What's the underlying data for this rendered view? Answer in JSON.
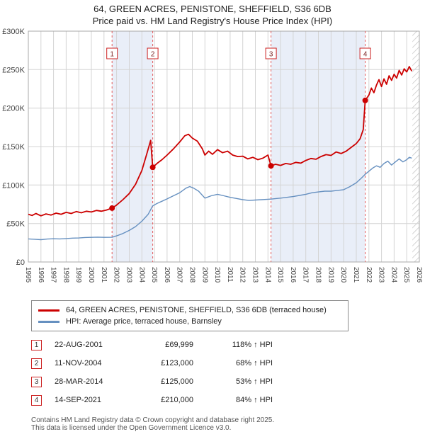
{
  "title": "64, GREEN ACRES, PENISTONE, SHEFFIELD, S36 6DB",
  "subtitle": "Price paid vs. HM Land Registry's House Price Index (HPI)",
  "chart_data": {
    "type": "line",
    "xlabel": "",
    "ylabel": "",
    "xlim": [
      1995,
      2026
    ],
    "ylim": [
      0,
      300000
    ],
    "y_unit": "GBP",
    "grid": true,
    "legend_position": "bottom",
    "x_ticks": [
      1995,
      1996,
      1997,
      1998,
      1999,
      2000,
      2001,
      2002,
      2003,
      2004,
      2005,
      2006,
      2007,
      2008,
      2009,
      2010,
      2011,
      2012,
      2013,
      2014,
      2015,
      2016,
      2017,
      2018,
      2019,
      2020,
      2021,
      2022,
      2023,
      2024,
      2025,
      2026
    ],
    "y_ticks": [
      {
        "v": 0,
        "label": "£0"
      },
      {
        "v": 50000,
        "label": "£50K"
      },
      {
        "v": 100000,
        "label": "£100K"
      },
      {
        "v": 150000,
        "label": "£150K"
      },
      {
        "v": 200000,
        "label": "£200K"
      },
      {
        "v": 250000,
        "label": "£250K"
      },
      {
        "v": 300000,
        "label": "£300K"
      }
    ],
    "band_color": "#e9eef8",
    "bands": [
      [
        2001.64,
        2004.86
      ],
      [
        2014.24,
        2021.71
      ]
    ],
    "hatch_from": 2025.45,
    "sale_line_color": "#e45c5c",
    "marker_color": "#cc0000",
    "series": [
      {
        "name": "64, GREEN ACRES, PENISTONE, SHEFFIELD, S36 6DB (terraced house)",
        "color": "#cc0000",
        "points": [
          [
            1995.0,
            62000
          ],
          [
            1995.3,
            60500
          ],
          [
            1995.6,
            63000
          ],
          [
            1996.0,
            60000
          ],
          [
            1996.4,
            62500
          ],
          [
            1996.8,
            61000
          ],
          [
            1997.2,
            63500
          ],
          [
            1997.6,
            62000
          ],
          [
            1998.0,
            64500
          ],
          [
            1998.4,
            63000
          ],
          [
            1998.8,
            65500
          ],
          [
            1999.2,
            64000
          ],
          [
            1999.6,
            66000
          ],
          [
            2000.0,
            65000
          ],
          [
            2000.4,
            67000
          ],
          [
            2000.8,
            66000
          ],
          [
            2001.2,
            67500
          ],
          [
            2001.64,
            69999
          ],
          [
            2002.0,
            74000
          ],
          [
            2002.5,
            81000
          ],
          [
            2003.0,
            89000
          ],
          [
            2003.5,
            101000
          ],
          [
            2004.0,
            119000
          ],
          [
            2004.4,
            141000
          ],
          [
            2004.7,
            158000
          ],
          [
            2004.86,
            123000
          ],
          [
            2005.2,
            128000
          ],
          [
            2005.6,
            133000
          ],
          [
            2006.0,
            139000
          ],
          [
            2006.5,
            147000
          ],
          [
            2007.0,
            156000
          ],
          [
            2007.4,
            164000
          ],
          [
            2007.7,
            166000
          ],
          [
            2008.0,
            161000
          ],
          [
            2008.4,
            157000
          ],
          [
            2008.8,
            147000
          ],
          [
            2009.0,
            139000
          ],
          [
            2009.3,
            144000
          ],
          [
            2009.6,
            140000
          ],
          [
            2010.0,
            146000
          ],
          [
            2010.4,
            142000
          ],
          [
            2010.8,
            144000
          ],
          [
            2011.2,
            139000
          ],
          [
            2011.6,
            137000
          ],
          [
            2012.0,
            137500
          ],
          [
            2012.4,
            134000
          ],
          [
            2012.8,
            136000
          ],
          [
            2013.2,
            133000
          ],
          [
            2013.6,
            135000
          ],
          [
            2014.0,
            139000
          ],
          [
            2014.24,
            125000
          ],
          [
            2014.6,
            127000
          ],
          [
            2015.0,
            125500
          ],
          [
            2015.4,
            128000
          ],
          [
            2015.8,
            127000
          ],
          [
            2016.2,
            129500
          ],
          [
            2016.6,
            128500
          ],
          [
            2017.0,
            132000
          ],
          [
            2017.4,
            134500
          ],
          [
            2017.8,
            133500
          ],
          [
            2018.2,
            137000
          ],
          [
            2018.6,
            139500
          ],
          [
            2019.0,
            138500
          ],
          [
            2019.4,
            143000
          ],
          [
            2019.8,
            141000
          ],
          [
            2020.2,
            144000
          ],
          [
            2020.6,
            149000
          ],
          [
            2021.0,
            154000
          ],
          [
            2021.3,
            160000
          ],
          [
            2021.55,
            172000
          ],
          [
            2021.71,
            210000
          ],
          [
            2022.0,
            217000
          ],
          [
            2022.2,
            226000
          ],
          [
            2022.4,
            220000
          ],
          [
            2022.6,
            230000
          ],
          [
            2022.8,
            237000
          ],
          [
            2023.0,
            228000
          ],
          [
            2023.2,
            238000
          ],
          [
            2023.4,
            231000
          ],
          [
            2023.6,
            242000
          ],
          [
            2023.8,
            236000
          ],
          [
            2024.0,
            244000
          ],
          [
            2024.2,
            239000
          ],
          [
            2024.4,
            249000
          ],
          [
            2024.6,
            243000
          ],
          [
            2024.8,
            251000
          ],
          [
            2025.0,
            247000
          ],
          [
            2025.2,
            254000
          ],
          [
            2025.4,
            248000
          ]
        ]
      },
      {
        "name": "HPI: Average price, terraced house, Barnsley",
        "color": "#6690c0",
        "points": [
          [
            1995.0,
            30000
          ],
          [
            1995.5,
            29500
          ],
          [
            1996.0,
            29000
          ],
          [
            1996.5,
            29800
          ],
          [
            1997.0,
            30200
          ],
          [
            1997.5,
            30000
          ],
          [
            1998.0,
            30500
          ],
          [
            1998.5,
            31000
          ],
          [
            1999.0,
            31200
          ],
          [
            1999.5,
            31800
          ],
          [
            2000.0,
            32000
          ],
          [
            2000.5,
            32300
          ],
          [
            2001.0,
            32000
          ],
          [
            2001.64,
            32100
          ],
          [
            2002.0,
            34000
          ],
          [
            2002.5,
            37000
          ],
          [
            2003.0,
            41000
          ],
          [
            2003.5,
            46000
          ],
          [
            2004.0,
            53000
          ],
          [
            2004.5,
            62000
          ],
          [
            2004.86,
            73000
          ],
          [
            2005.2,
            76000
          ],
          [
            2005.6,
            79000
          ],
          [
            2006.0,
            82000
          ],
          [
            2006.5,
            86000
          ],
          [
            2007.0,
            90000
          ],
          [
            2007.5,
            96000
          ],
          [
            2007.8,
            98000
          ],
          [
            2008.1,
            96000
          ],
          [
            2008.5,
            92000
          ],
          [
            2009.0,
            83000
          ],
          [
            2009.5,
            86000
          ],
          [
            2010.0,
            88000
          ],
          [
            2010.5,
            86000
          ],
          [
            2011.0,
            84000
          ],
          [
            2011.5,
            82500
          ],
          [
            2012.0,
            81000
          ],
          [
            2012.5,
            80000
          ],
          [
            2013.0,
            80500
          ],
          [
            2013.5,
            81000
          ],
          [
            2014.0,
            81500
          ],
          [
            2014.24,
            81700
          ],
          [
            2014.7,
            82500
          ],
          [
            2015.0,
            83000
          ],
          [
            2015.5,
            84000
          ],
          [
            2016.0,
            85000
          ],
          [
            2016.5,
            86500
          ],
          [
            2017.0,
            88000
          ],
          [
            2017.5,
            90000
          ],
          [
            2018.0,
            91000
          ],
          [
            2018.5,
            92000
          ],
          [
            2019.0,
            92000
          ],
          [
            2019.5,
            93000
          ],
          [
            2020.0,
            94000
          ],
          [
            2020.5,
            98000
          ],
          [
            2021.0,
            103000
          ],
          [
            2021.4,
            109000
          ],
          [
            2021.71,
            114000
          ],
          [
            2022.0,
            118000
          ],
          [
            2022.3,
            122000
          ],
          [
            2022.6,
            125000
          ],
          [
            2022.9,
            123000
          ],
          [
            2023.2,
            128000
          ],
          [
            2023.5,
            131000
          ],
          [
            2023.8,
            126000
          ],
          [
            2024.1,
            130000
          ],
          [
            2024.4,
            134000
          ],
          [
            2024.7,
            130000
          ],
          [
            2025.0,
            133000
          ],
          [
            2025.2,
            136000
          ],
          [
            2025.4,
            135000
          ]
        ]
      }
    ],
    "sales": [
      {
        "label": "1",
        "x": 2001.64,
        "price": 69999
      },
      {
        "label": "2",
        "x": 2004.86,
        "price": 123000
      },
      {
        "label": "3",
        "x": 2014.24,
        "price": 125000
      },
      {
        "label": "4",
        "x": 2021.71,
        "price": 210000
      }
    ]
  },
  "legend": {
    "items": [
      {
        "label": "64, GREEN ACRES, PENISTONE, SHEFFIELD, S36 6DB (terraced house)",
        "color": "#cc0000"
      },
      {
        "label": "HPI: Average price, terraced house, Barnsley",
        "color": "#6690c0"
      }
    ]
  },
  "table": {
    "rows": [
      {
        "num": "1",
        "date": "22-AUG-2001",
        "price": "£69,999",
        "hpi": "118% ↑ HPI"
      },
      {
        "num": "2",
        "date": "11-NOV-2004",
        "price": "£123,000",
        "hpi": "68% ↑ HPI"
      },
      {
        "num": "3",
        "date": "28-MAR-2014",
        "price": "£125,000",
        "hpi": "53% ↑ HPI"
      },
      {
        "num": "4",
        "date": "14-SEP-2021",
        "price": "£210,000",
        "hpi": "84% ↑ HPI"
      }
    ]
  },
  "footer": {
    "line1": "Contains HM Land Registry data © Crown copyright and database right 2025.",
    "line2": "This data is licensed under the Open Government Licence v3.0."
  }
}
